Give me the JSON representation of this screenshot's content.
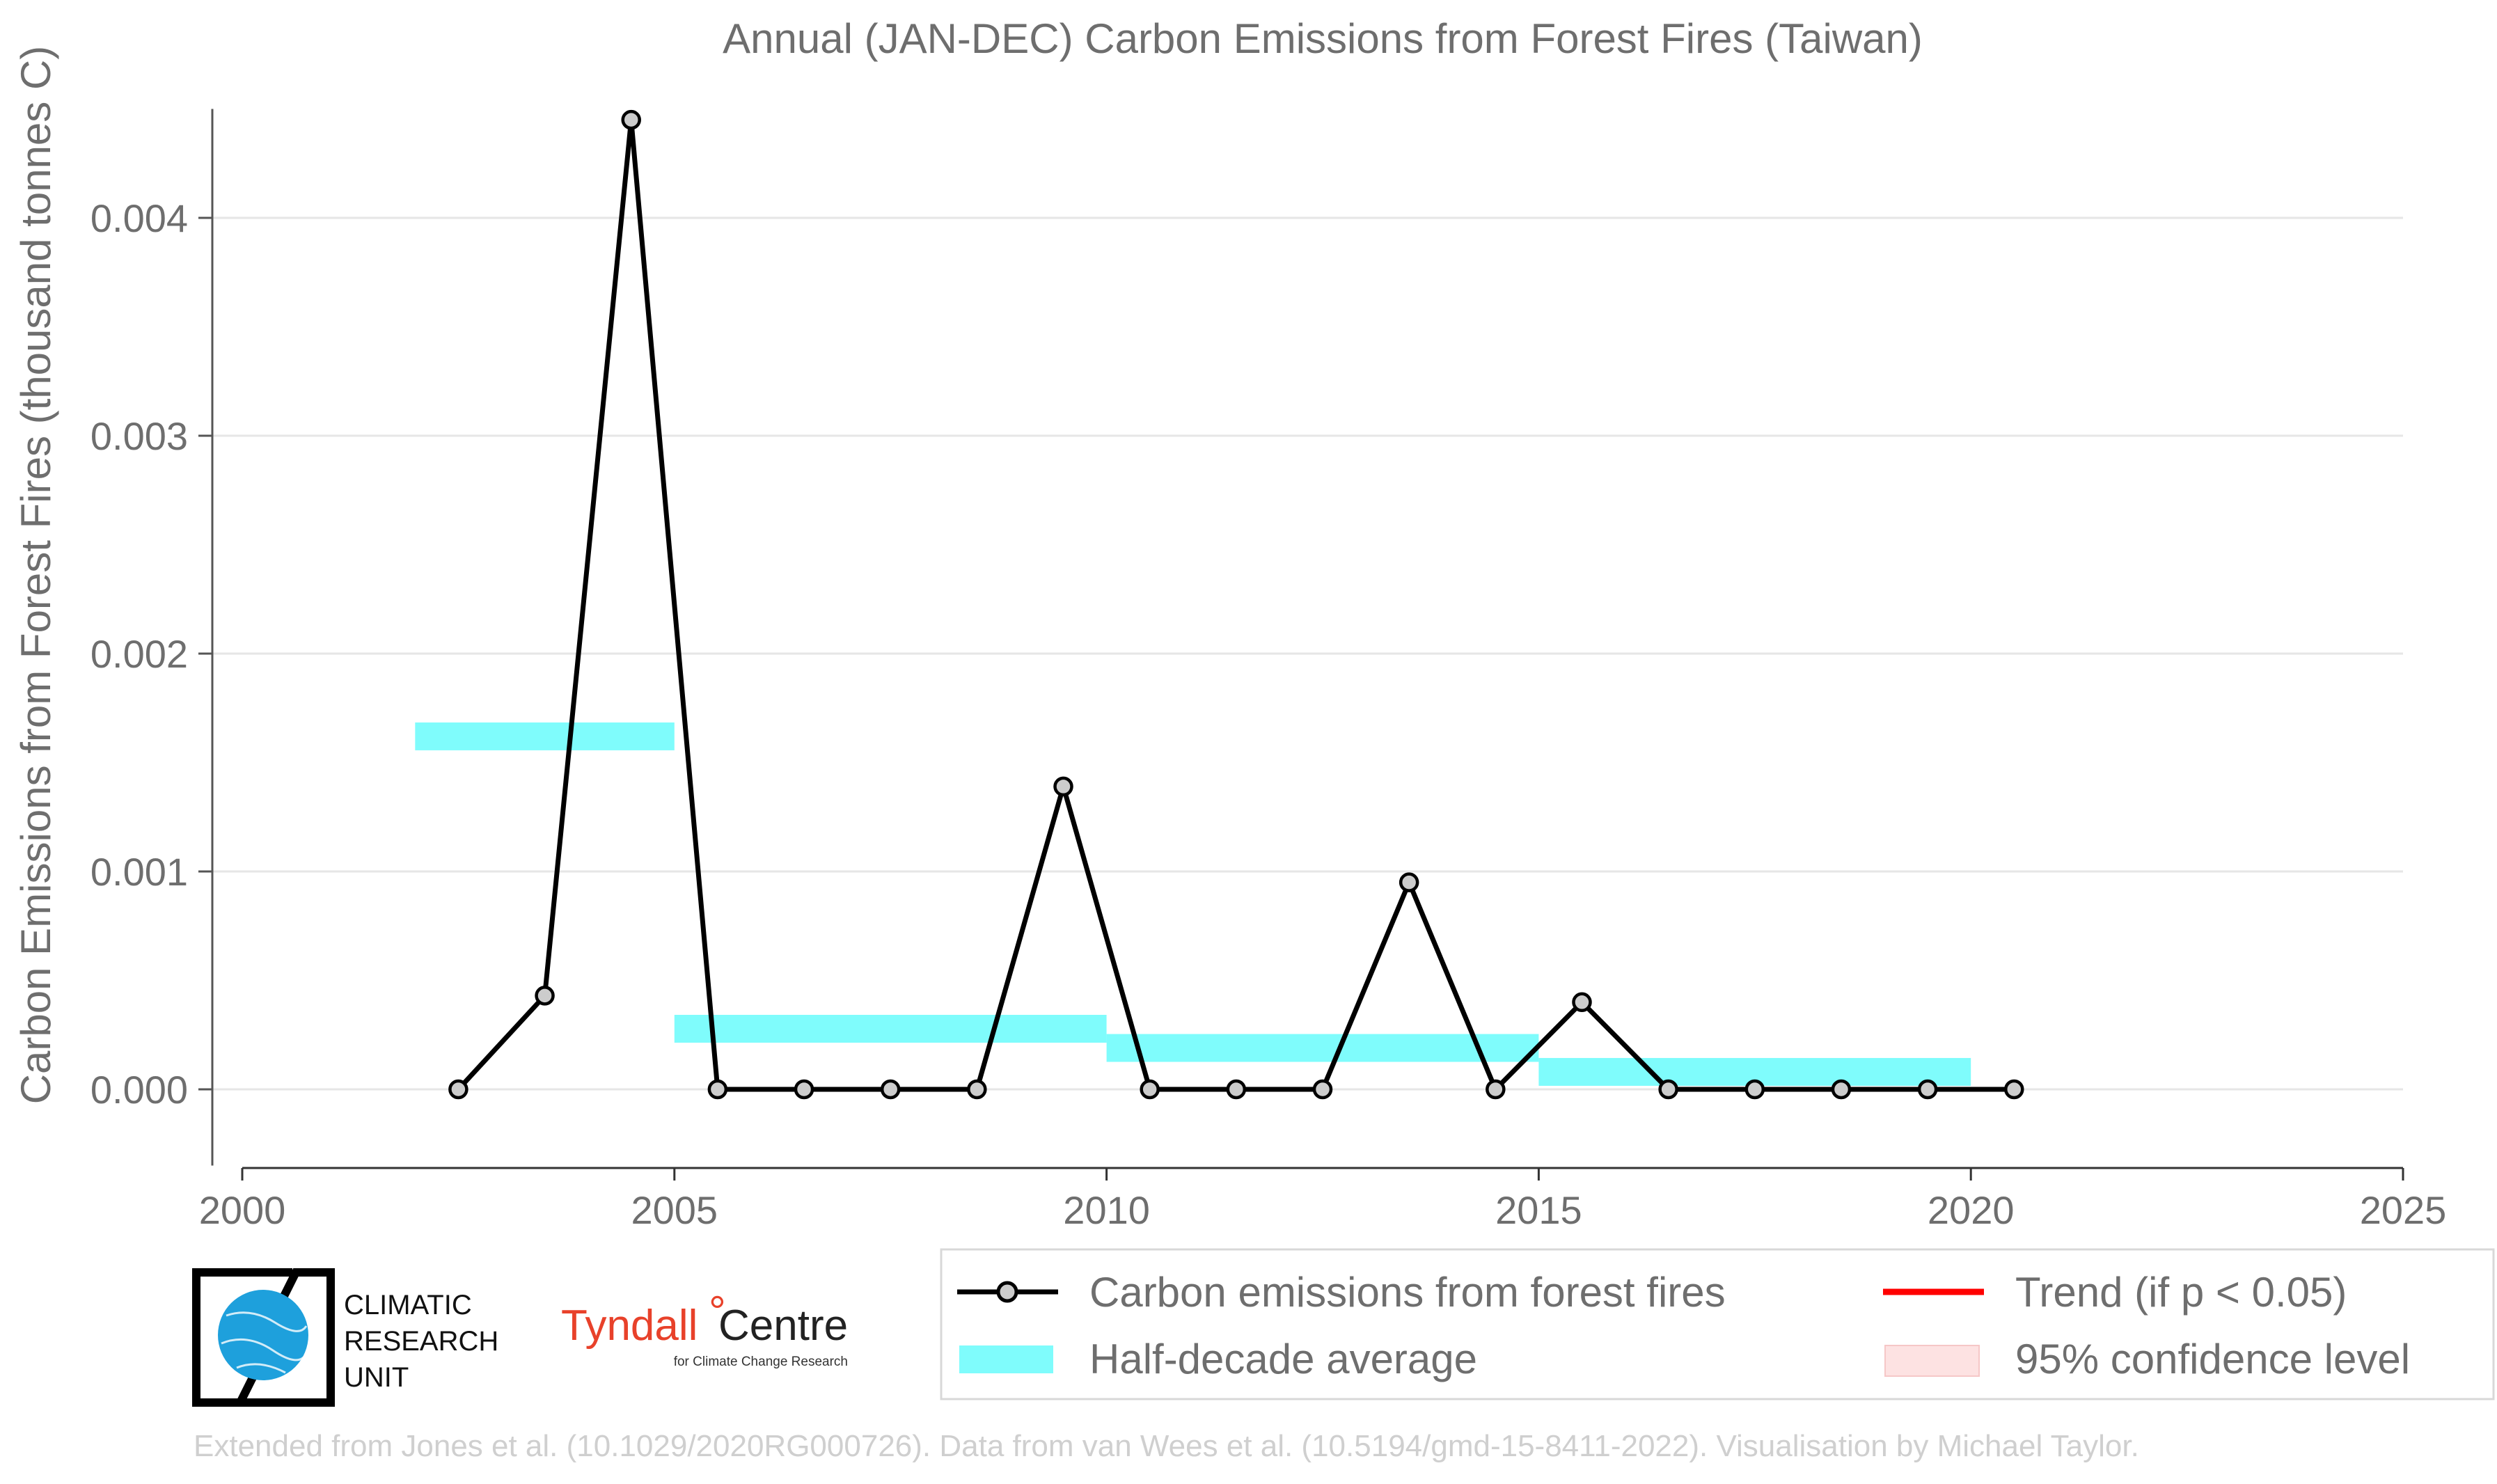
{
  "chart_data": {
    "type": "line",
    "title": "Annual (JAN-DEC) Carbon Emissions from Forest Fires (Taiwan)",
    "xlabel": "",
    "ylabel": "Carbon Emissions from Forest Fires (thousand tonnes C)",
    "xlim": [
      2000,
      2025
    ],
    "ylim": [
      -0.00035,
      0.0045
    ],
    "xticks": [
      "2000",
      "2005",
      "2010",
      "2015",
      "2020",
      "2025"
    ],
    "yticks": [
      "0.000",
      "0.001",
      "0.002",
      "0.003",
      "0.004"
    ],
    "grid": true,
    "series": [
      {
        "name": "Carbon emissions from forest fires",
        "color": "#000000",
        "x": [
          2002.5,
          2003.5,
          2004.5,
          2005.5,
          2006.5,
          2007.5,
          2008.5,
          2009.5,
          2010.5,
          2011.5,
          2012.5,
          2013.5,
          2014.5,
          2015.5,
          2016.5,
          2017.5,
          2018.5,
          2019.5,
          2020.5
        ],
        "values": [
          0.0,
          0.00043,
          0.00445,
          0.0,
          0.0,
          0.0,
          0.0,
          0.00139,
          0.0,
          0.0,
          0.0,
          0.00095,
          0.0,
          0.0004,
          0.0,
          0.0,
          0.0,
          0.0,
          0.0
        ]
      },
      {
        "name": "Half-decade average",
        "type": "step",
        "color": "#7ffcfc",
        "segments": [
          {
            "x0": 2002,
            "x1": 2005,
            "value": 0.00162
          },
          {
            "x0": 2005,
            "x1": 2010,
            "value": 0.000278
          },
          {
            "x0": 2010,
            "x1": 2015,
            "value": 0.00019
          },
          {
            "x0": 2015,
            "x1": 2020,
            "value": 8e-05
          }
        ]
      }
    ],
    "legend": {
      "placement": "bottom-right",
      "entries": [
        {
          "label": "Carbon emissions from forest fires",
          "symbol": "line-marker",
          "color": "#000000"
        },
        {
          "label": "Trend (if p < 0.05)",
          "symbol": "line",
          "color": "#ff0000"
        },
        {
          "label": "Half-decade average",
          "symbol": "band",
          "color": "#7ffcfc"
        },
        {
          "label": "95% confidence level",
          "symbol": "band",
          "color": "#fde2e2"
        }
      ]
    }
  },
  "logos": {
    "cru": [
      "CLIMATIC",
      "RESEARCH",
      "UNIT"
    ],
    "tyndall_main": "Tyndall",
    "tyndall_degree": "°",
    "tyndall_centre": "Centre",
    "tyndall_sub": "for Climate Change Research"
  },
  "footer": "Extended from Jones et al. (10.1029/2020RG000726). Data from van Wees et al. (10.5194/gmd-15-8411-2022). Visualisation by Michael Taylor."
}
